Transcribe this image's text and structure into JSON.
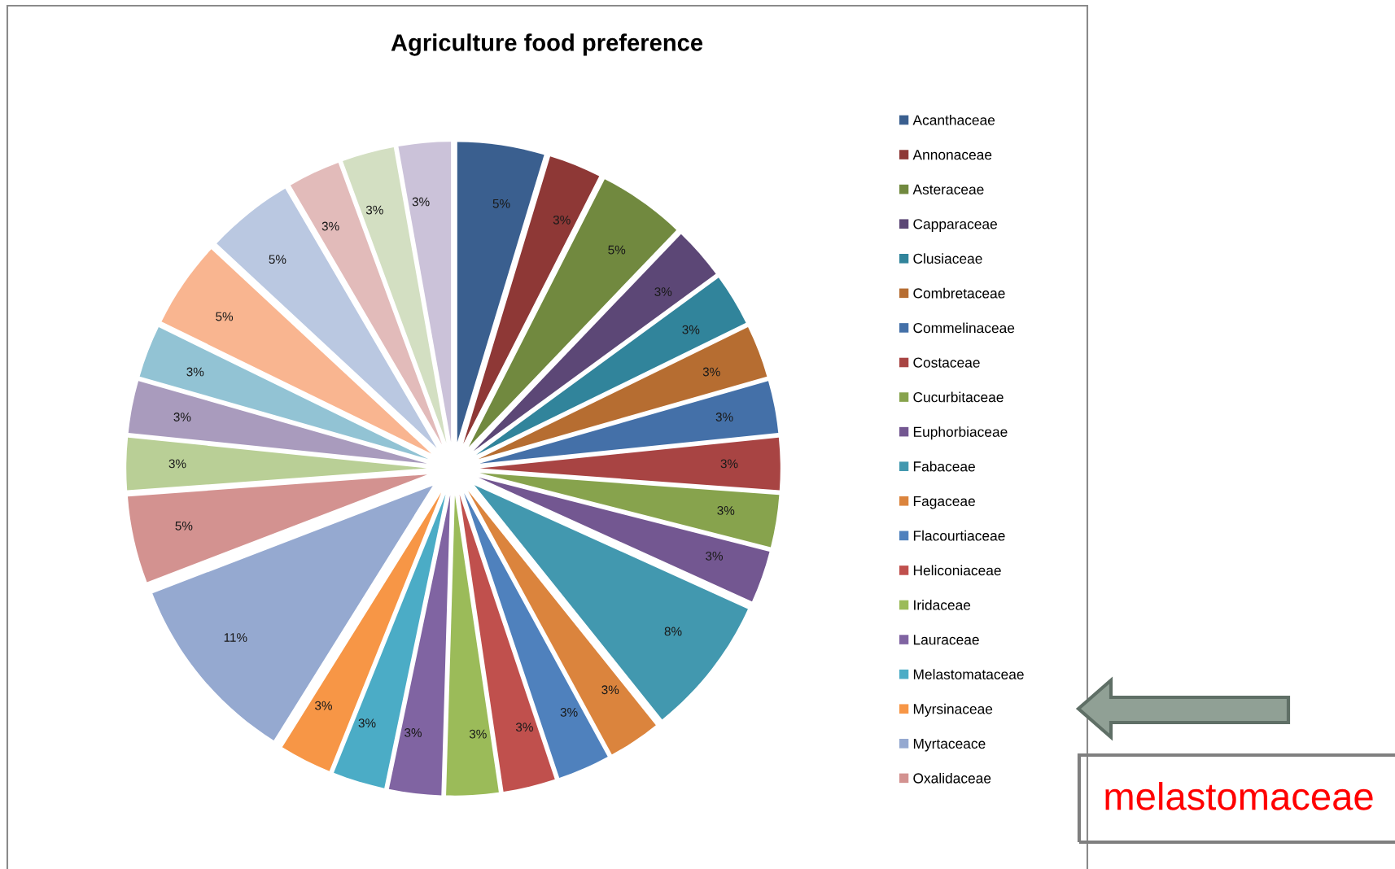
{
  "chart_data": {
    "type": "pie",
    "title": "Agriculture food preference",
    "categories": [
      "Acanthaceae",
      "Annonaceae",
      "Asteraceae",
      "Capparaceae",
      "Clusiaceae",
      "Combretaceae",
      "Commelinaceae",
      "Costaceae",
      "Cucurbitaceae",
      "Euphorbiaceae",
      "Fabaceae",
      "Fagaceae",
      "Flacourtiaceae",
      "Heliconiaceae",
      "Iridaceae",
      "Lauraceae",
      "Melastomataceae",
      "Myrsinaceae",
      "Myrtaceace",
      "Oxalidaceae",
      null,
      null,
      null,
      null,
      null,
      null,
      null,
      null
    ],
    "values": [
      5,
      3,
      5,
      3,
      3,
      3,
      3,
      3,
      3,
      3,
      8,
      3,
      3,
      3,
      3,
      3,
      3,
      3,
      11,
      5,
      3,
      3,
      3,
      5,
      5,
      3,
      3,
      3
    ],
    "value_labels": [
      "5%",
      "3%",
      "5%",
      "3%",
      "3%",
      "3%",
      "3%",
      "3%",
      "3%",
      "3%",
      "8%",
      "3%",
      "3%",
      "3%",
      "3%",
      "3%",
      "3%",
      "3%",
      "11%",
      "5%",
      "3%",
      "3%",
      "3%",
      "5%",
      "5%",
      "3%",
      "3%",
      "3%"
    ],
    "colors": [
      "#3a5f8f",
      "#8e3836",
      "#71893f",
      "#5c4776",
      "#31849b",
      "#b66d31",
      "#4470a8",
      "#a84443",
      "#87a34d",
      "#735791",
      "#4298af",
      "#db843d",
      "#4f81bd",
      "#c0504d",
      "#9bbb59",
      "#8064a2",
      "#4bacc6",
      "#f79646",
      "#95a9d0",
      "#d39290",
      "#b9cf96",
      "#a99bbd",
      "#92c3d4",
      "#f9b590",
      "#bac8e1",
      "#e2bbba",
      "#d3dfc2",
      "#cbc2d9"
    ],
    "legend": "right",
    "annotations": [
      "melastomaceae"
    ]
  }
}
